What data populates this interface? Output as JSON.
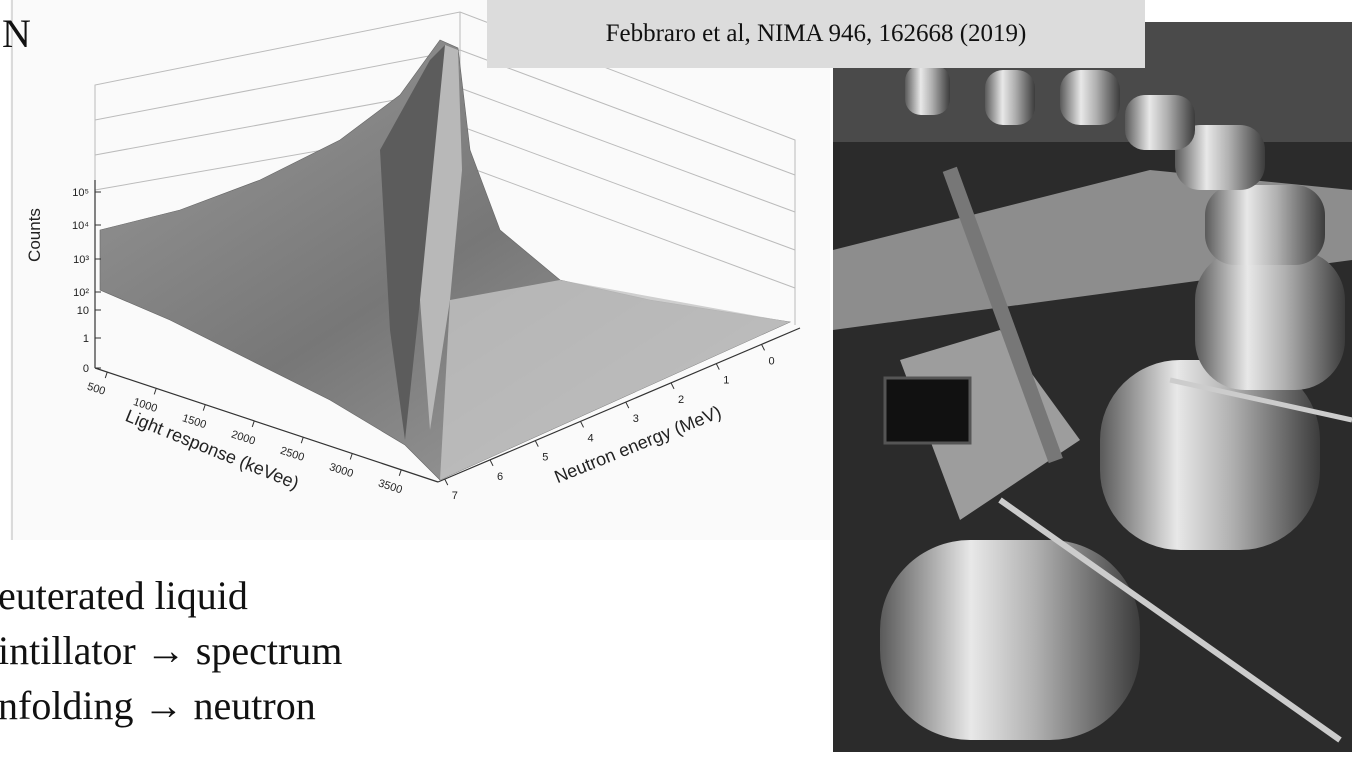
{
  "heading_fragment": "N",
  "citation": "Febbraro et al, NIMA 946, 162668 (2019)",
  "figure": {
    "z_axis": {
      "label": "Counts",
      "ticks": [
        "10⁵",
        "10⁴",
        "10³",
        "10²",
        "10",
        "1",
        "0"
      ]
    },
    "x_axis": {
      "label": "Light response (keVee)",
      "ticks": [
        "500",
        "1000",
        "1500",
        "2000",
        "2500",
        "3000",
        "3500"
      ]
    },
    "y_axis": {
      "label": "Neutron energy (MeV)",
      "ticks": [
        "7",
        "6",
        "5",
        "4",
        "3",
        "2",
        "1",
        "0"
      ]
    }
  },
  "bullets": [
    "euterated liquid",
    "intillator → spectrum",
    "nfolding → neutron"
  ]
}
